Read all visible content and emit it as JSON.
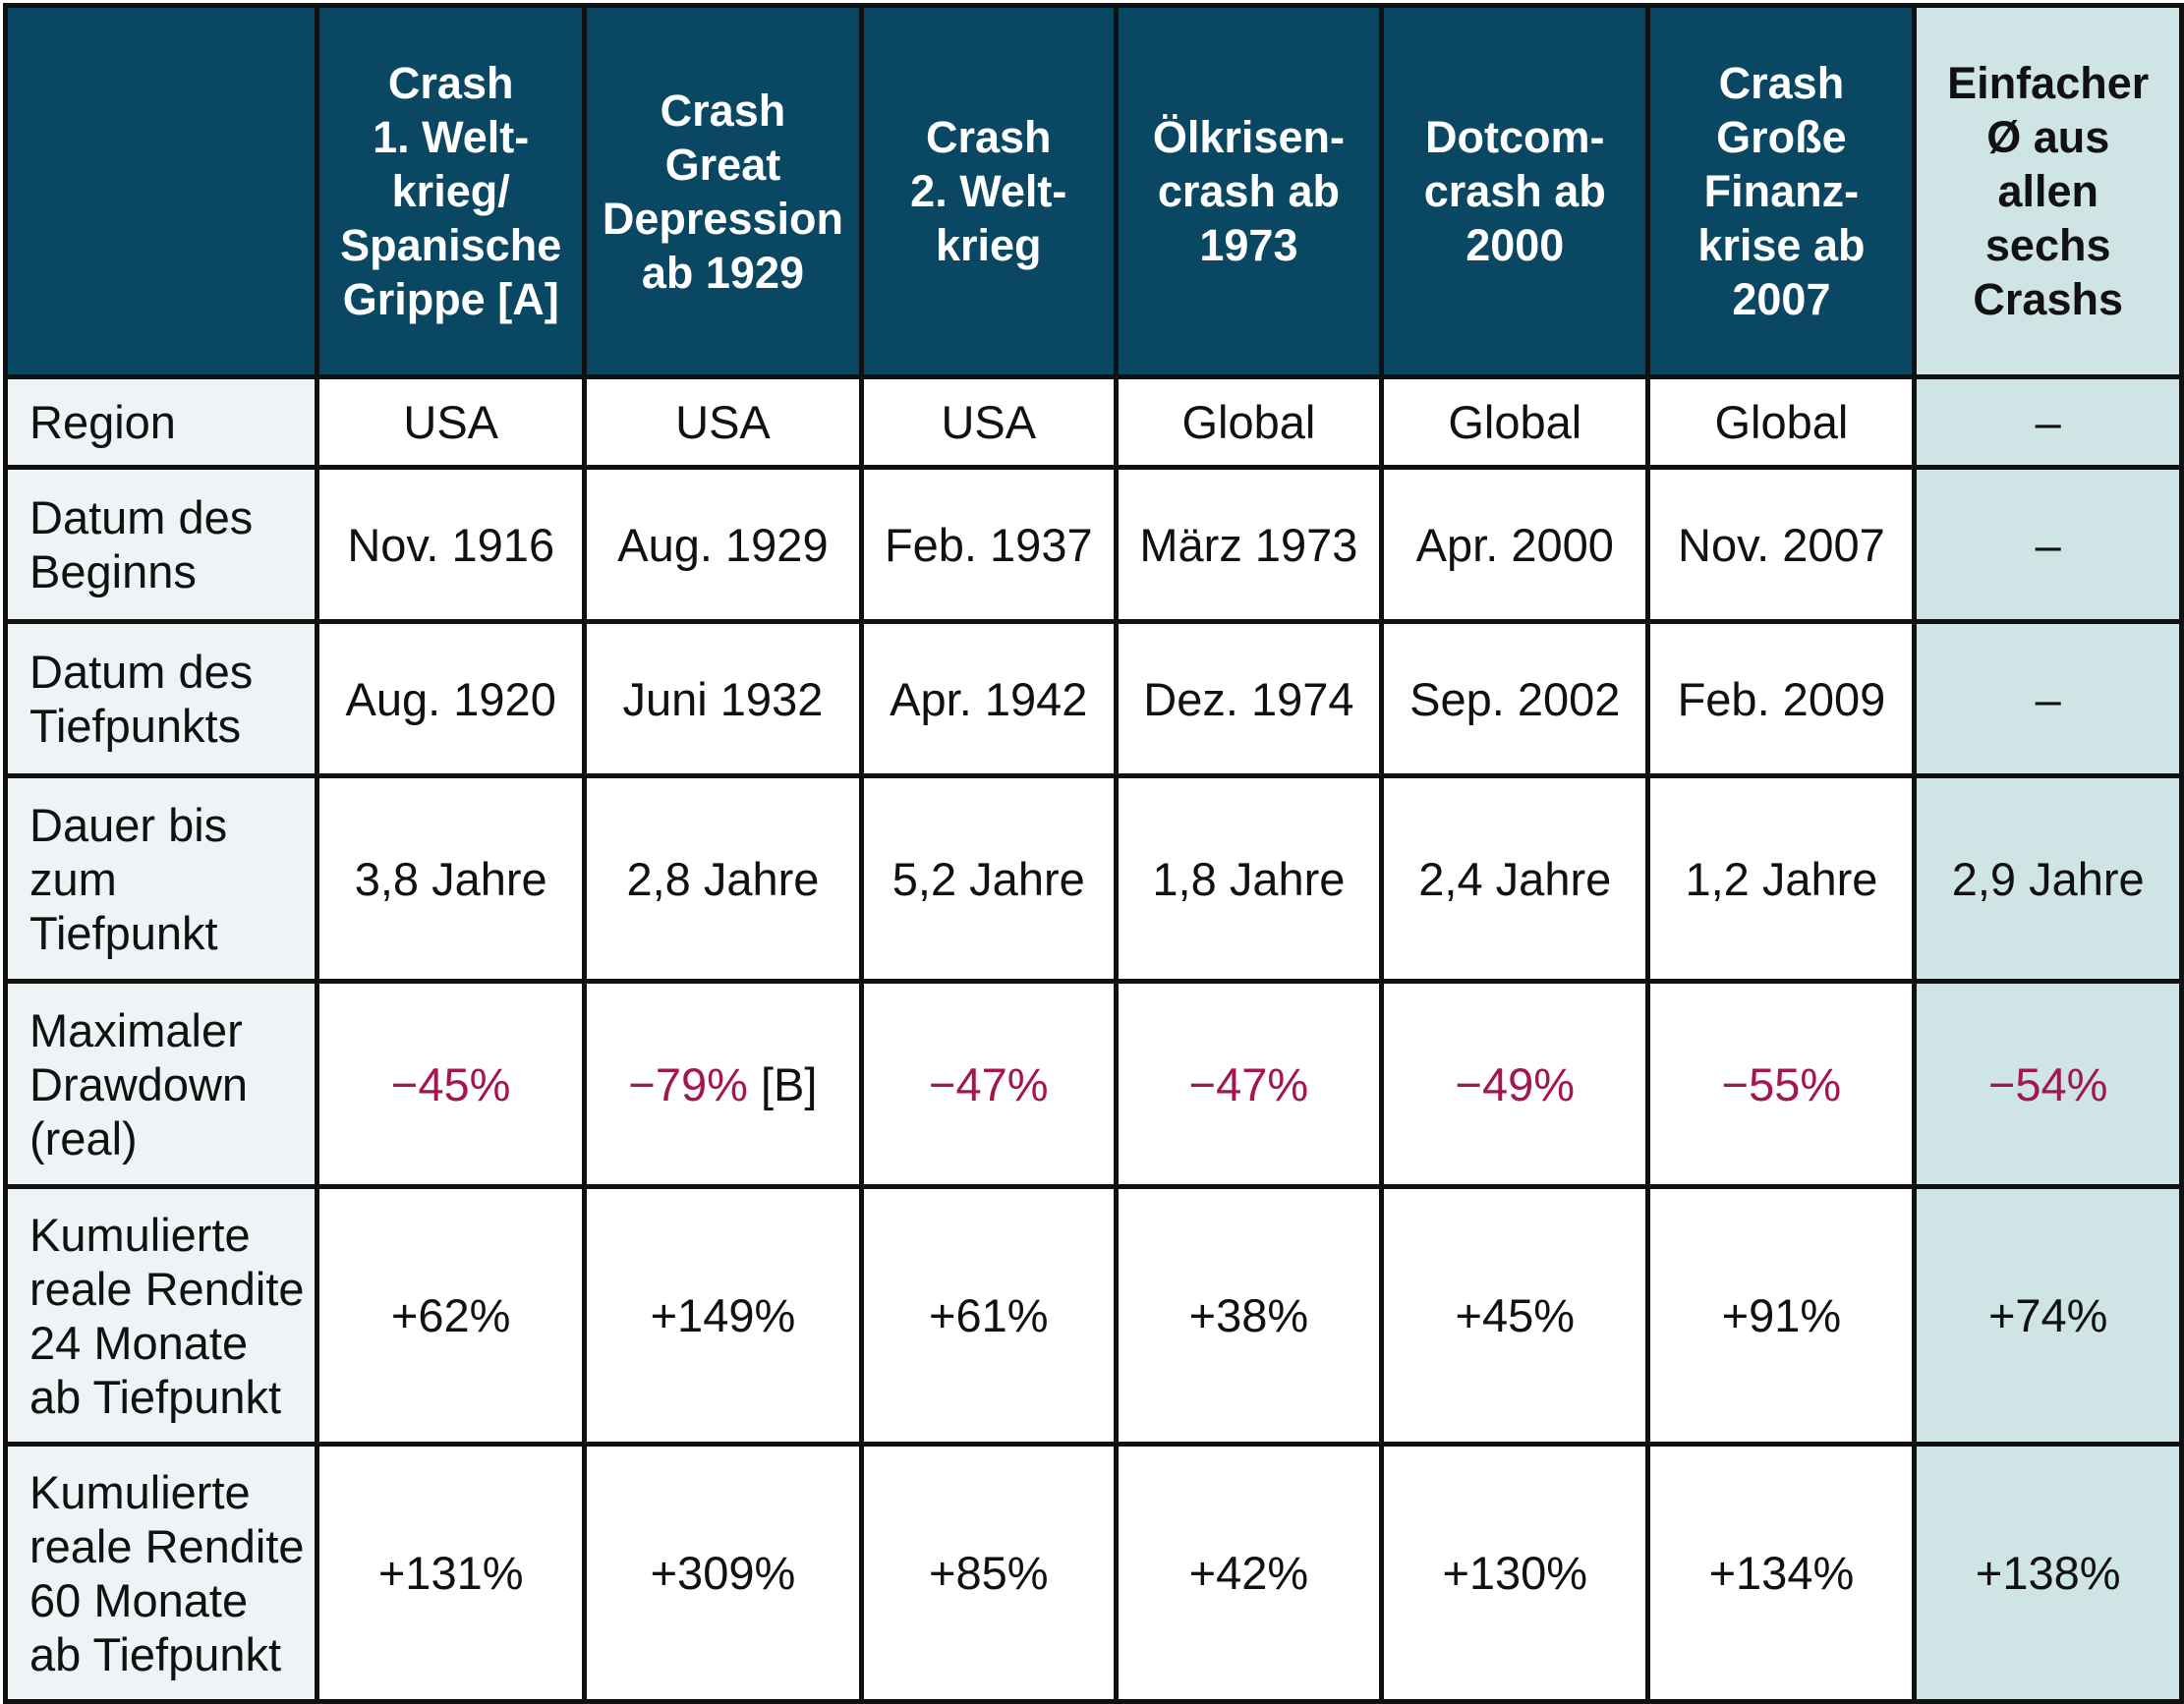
{
  "header": {
    "columns": [
      "",
      "Crash\n1. Welt-\nkrieg/\nSpanische\nGrippe [A]",
      "Crash\nGreat\nDepression\nab 1929",
      "Crash\n2. Welt-\nkrieg",
      "Ölkrisen-\ncrash ab\n1973",
      "Dotcom-\ncrash ab\n2000",
      "Crash\nGroße\nFinanz-\nkrise ab\n2007",
      "Einfacher\nØ aus\nallen\nsechs\nCrashs"
    ]
  },
  "rows": [
    {
      "label": "Region",
      "cells": [
        "USA",
        "USA",
        "USA",
        "Global",
        "Global",
        "Global",
        "–"
      ]
    },
    {
      "label": "Datum des\nBeginns",
      "cells": [
        "Nov. 1916",
        "Aug. 1929",
        "Feb. 1937",
        "März 1973",
        "Apr. 2000",
        "Nov. 2007",
        "–"
      ]
    },
    {
      "label": "Datum des\nTiefpunkts",
      "cells": [
        "Aug. 1920",
        "Juni 1932",
        "Apr. 1942",
        "Dez. 1974",
        "Sep. 2002",
        "Feb. 2009",
        "–"
      ]
    },
    {
      "label": "Dauer bis\nzum\nTiefpunkt",
      "cells": [
        "3,8 Jahre",
        "2,8 Jahre",
        "5,2 Jahre",
        "1,8 Jahre",
        "2,4 Jahre",
        "1,2 Jahre",
        "2,9 Jahre"
      ]
    },
    {
      "label": "Maximaler\nDrawdown\n(real)",
      "cells": [
        "−45%",
        "−79%",
        "−47%",
        "−47%",
        "−49%",
        "−55%",
        "−54%"
      ],
      "note_col1": "[B]"
    },
    {
      "label": "Kumulierte\nreale Rendite\n24 Monate\nab Tiefpunkt",
      "cells": [
        "+62%",
        "+149%",
        "+61%",
        "+38%",
        "+45%",
        "+91%",
        "+74%"
      ]
    },
    {
      "label": "Kumulierte\nreale Rendite\n60 Monate\nab Tiefpunkt",
      "cells": [
        "+131%",
        "+309%",
        "+85%",
        "+42%",
        "+130%",
        "+134%",
        "+138%"
      ]
    }
  ],
  "colors": {
    "header_bg": "#0a4762",
    "average_column_bg": "#cfe4e5",
    "label_column_bg": "#eef3f6",
    "negative_text": "#a3164f",
    "border": "#111111"
  }
}
